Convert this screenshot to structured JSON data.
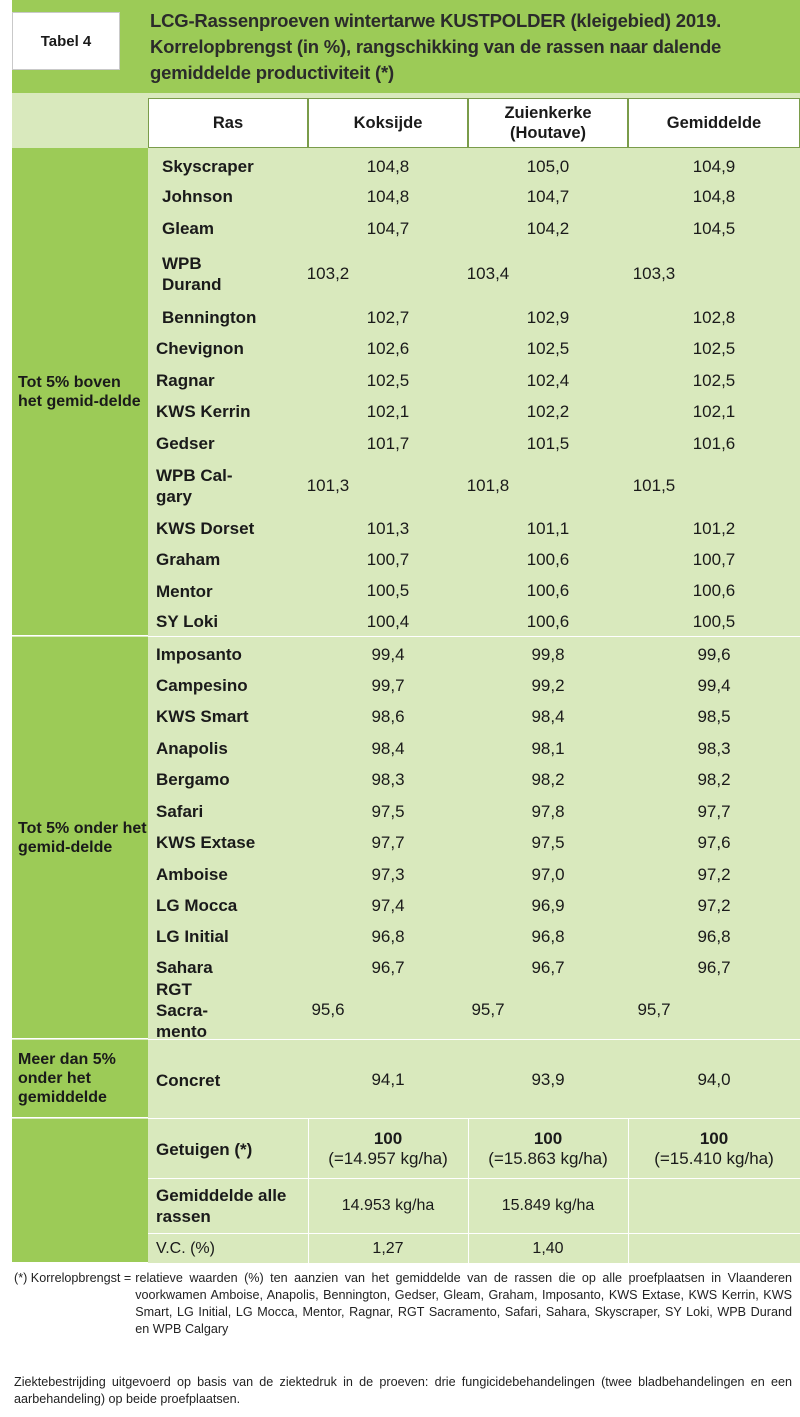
{
  "label": "Tabel 4",
  "title": "LCG-Rassenproeven wintertarwe KUSTPOLDER (kleigebied) 2019. Korrelopbrengst (in %), rangschikking van de rassen naar dalende gemiddelde productiviteit (*)",
  "headers": [
    "Ras",
    "Koksijde",
    "Zuienkerke (Houtave)",
    "Gemiddelde"
  ],
  "groups": [
    {
      "label": "Tot 5% boven het gemid-delde"
    },
    {
      "label": "Tot 5% onder het gemid-delde"
    },
    {
      "label": "Meer dan 5% onder het gemiddelde"
    }
  ],
  "rows": [
    [
      "Skyscraper",
      "104,8",
      "105,0",
      "104,9"
    ],
    [
      "Johnson",
      "104,8",
      "104,7",
      "104,8"
    ],
    [
      "Gleam",
      "104,7",
      "104,2",
      "104,5"
    ],
    [
      "WPB Durand",
      "103,2",
      "103,4",
      "103,3"
    ],
    [
      "Bennington",
      "102,7",
      "102,9",
      "102,8"
    ],
    [
      "Chevignon",
      "102,6",
      "102,5",
      "102,5"
    ],
    [
      "Ragnar",
      "102,5",
      "102,4",
      "102,5"
    ],
    [
      "KWS Kerrin",
      "102,1",
      "102,2",
      "102,1"
    ],
    [
      "Gedser",
      "101,7",
      "101,5",
      "101,6"
    ],
    [
      "WPB Cal-gary",
      "101,3",
      "101,8",
      "101,5"
    ],
    [
      "KWS Dorset",
      "101,3",
      "101,1",
      "101,2"
    ],
    [
      "Graham",
      "100,7",
      "100,6",
      "100,7"
    ],
    [
      "Mentor",
      "100,5",
      "100,6",
      "100,6"
    ],
    [
      "SY Loki",
      "100,4",
      "100,6",
      "100,5"
    ],
    [
      "Imposanto",
      "99,4",
      "99,8",
      "99,6"
    ],
    [
      "Campesino",
      "99,7",
      "99,2",
      "99,4"
    ],
    [
      "KWS Smart",
      "98,6",
      "98,4",
      "98,5"
    ],
    [
      "Anapolis",
      "98,4",
      "98,1",
      "98,3"
    ],
    [
      "Bergamo",
      "98,3",
      "98,2",
      "98,2"
    ],
    [
      "Safari",
      "97,5",
      "97,8",
      "97,7"
    ],
    [
      "KWS Extase",
      "97,7",
      "97,5",
      "97,6"
    ],
    [
      "Amboise",
      "97,3",
      "97,0",
      "97,2"
    ],
    [
      "LG Mocca",
      "97,4",
      "96,9",
      "97,2"
    ],
    [
      "LG Initial",
      "96,8",
      "96,8",
      "96,8"
    ],
    [
      "Sahara",
      "96,7",
      "96,7",
      "96,7"
    ],
    [
      "RGT Sacra-mento",
      "95,6",
      "95,7",
      "95,7"
    ],
    [
      "Concret",
      "94,1",
      "93,9",
      "94,0"
    ]
  ],
  "getuigen": {
    "label": "Getuigen (*)",
    "values": [
      {
        "top": "100",
        "bottom": "(=14.957 kg/ha)"
      },
      {
        "top": "100",
        "bottom": "(=15.863 kg/ha)"
      },
      {
        "top": "100",
        "bottom": "(=15.410 kg/ha)"
      }
    ]
  },
  "gemiddelde_alle": {
    "label": "Gemiddelde alle rassen",
    "values": [
      "14.953 kg/ha",
      "15.849 kg/ha",
      ""
    ]
  },
  "vc": {
    "label": "V.C. (%)",
    "values": [
      "1,27",
      "1,40",
      ""
    ]
  },
  "footnote1_key": "(*) Korrelopbrengst =",
  "footnote1_text": "relatieve waarden (%) ten aanzien van het gemiddelde van de rassen die op alle proefplaatsen in Vlaanderen voorkwamen Amboise, Anapolis, Bennington, Gedser, Gleam, Graham, Imposanto, KWS Extase, KWS Kerrin, KWS Smart, LG Initial, LG Mocca, Mentor, Ragnar, RGT Sacramento, Safari, Sahara, Skyscraper, SY Loki, WPB Durand en WPB Calgary",
  "footnote2_text": "Ziektebestrijding uitgevoerd op basis van de ziektedruk in de proeven: drie fungicidebehandelingen (twee bladbehandelingen en een aarbehandeling) op beide proefplaatsen.",
  "colors": {
    "green": "#9ccb57",
    "light_green": "#d9e9bd"
  }
}
